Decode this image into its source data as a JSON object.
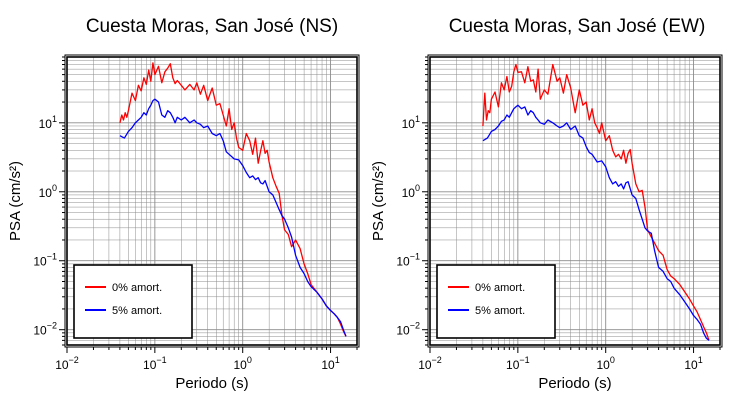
{
  "chart_data": [
    {
      "type": "line",
      "title": "Cuesta Moras, San José (NS)",
      "xlabel": "Periodo (s)",
      "ylabel": "PSA (cm/s²)",
      "x_scale": "log",
      "y_scale": "log",
      "xlim": [
        0.01,
        20
      ],
      "ylim": [
        0.006,
        90
      ],
      "x_ticks": [
        0.01,
        0.1,
        1,
        10
      ],
      "y_ticks": [
        0.01,
        0.1,
        1,
        10
      ],
      "grid": true,
      "legend_position": "bottom-left",
      "series": [
        {
          "name": "0% amort.",
          "color": "#ff0000",
          "x": [
            0.04,
            0.042,
            0.044,
            0.046,
            0.048,
            0.05,
            0.055,
            0.06,
            0.065,
            0.07,
            0.075,
            0.08,
            0.085,
            0.09,
            0.095,
            0.1,
            0.11,
            0.12,
            0.13,
            0.14,
            0.15,
            0.16,
            0.17,
            0.18,
            0.2,
            0.22,
            0.25,
            0.28,
            0.3,
            0.33,
            0.36,
            0.4,
            0.45,
            0.5,
            0.55,
            0.6,
            0.65,
            0.7,
            0.75,
            0.8,
            0.85,
            0.9,
            1.0,
            1.1,
            1.2,
            1.3,
            1.4,
            1.5,
            1.6,
            1.7,
            1.8,
            1.9,
            2.0,
            2.2,
            2.4,
            2.6,
            2.8,
            3.0,
            3.3,
            3.6,
            4.0,
            4.5,
            5.0,
            5.5,
            6.0,
            7.0,
            8.0,
            9.0,
            10.0,
            11.0,
            12.0,
            13.0,
            14.0,
            15.0
          ],
          "values": [
            10,
            13,
            11,
            14,
            12,
            15,
            27,
            21,
            35,
            29,
            45,
            36,
            58,
            40,
            74,
            50,
            66,
            38,
            55,
            62,
            72,
            45,
            37,
            41,
            35,
            30,
            36,
            30,
            38,
            26,
            35,
            21,
            32,
            18,
            19,
            13,
            9,
            16,
            8,
            10,
            6,
            4.4,
            4.0,
            7.0,
            5.5,
            3.5,
            6.0,
            2.6,
            3.9,
            5.5,
            3.6,
            4.0,
            2.7,
            1.6,
            1.2,
            0.95,
            0.45,
            0.28,
            0.24,
            0.16,
            0.2,
            0.15,
            0.09,
            0.065,
            0.045,
            0.035,
            0.028,
            0.022,
            0.019,
            0.017,
            0.015,
            0.012,
            0.0095,
            0.008
          ]
        },
        {
          "name": "5% amort.",
          "color": "#0000ff",
          "x": [
            0.04,
            0.045,
            0.05,
            0.055,
            0.06,
            0.065,
            0.07,
            0.075,
            0.08,
            0.085,
            0.09,
            0.095,
            0.1,
            0.11,
            0.12,
            0.13,
            0.14,
            0.15,
            0.16,
            0.17,
            0.18,
            0.2,
            0.22,
            0.25,
            0.28,
            0.3,
            0.33,
            0.36,
            0.4,
            0.45,
            0.5,
            0.55,
            0.6,
            0.65,
            0.7,
            0.8,
            0.9,
            1.0,
            1.1,
            1.2,
            1.3,
            1.4,
            1.5,
            1.6,
            1.7,
            1.8,
            2.0,
            2.2,
            2.4,
            2.6,
            2.8,
            3.0,
            3.3,
            3.6,
            4.0,
            4.5,
            5.0,
            5.5,
            6.0,
            7.0,
            8.0,
            9.0,
            10.0,
            11.0,
            12.0,
            13.0,
            14.0,
            15.0
          ],
          "values": [
            6.5,
            6.0,
            7.5,
            8.5,
            10,
            11,
            12,
            14,
            13,
            16,
            18,
            21,
            22,
            20,
            13,
            12,
            15,
            14,
            12,
            10,
            12,
            11,
            12,
            10,
            11,
            10,
            9.5,
            8.5,
            9.0,
            7.0,
            6.5,
            7.0,
            5.5,
            3.8,
            3.5,
            3.0,
            2.9,
            2.4,
            1.9,
            1.6,
            1.7,
            1.5,
            1.6,
            1.35,
            1.3,
            1.45,
            1.0,
            0.9,
            0.7,
            0.55,
            0.45,
            0.4,
            0.3,
            0.22,
            0.12,
            0.08,
            0.065,
            0.05,
            0.042,
            0.035,
            0.028,
            0.022,
            0.019,
            0.017,
            0.015,
            0.013,
            0.01,
            0.008
          ]
        }
      ]
    },
    {
      "type": "line",
      "title": "Cuesta Moras, San José (EW)",
      "xlabel": "Periodo (s)",
      "ylabel": "PSA (cm/s²)",
      "x_scale": "log",
      "y_scale": "log",
      "xlim": [
        0.01,
        20
      ],
      "ylim": [
        0.006,
        90
      ],
      "x_ticks": [
        0.01,
        0.1,
        1,
        10
      ],
      "y_ticks": [
        0.01,
        0.1,
        1,
        10
      ],
      "grid": true,
      "legend_position": "bottom-left",
      "series": [
        {
          "name": "0% amort.",
          "color": "#ff0000",
          "x": [
            0.04,
            0.042,
            0.044,
            0.046,
            0.048,
            0.05,
            0.055,
            0.06,
            0.065,
            0.07,
            0.075,
            0.08,
            0.085,
            0.09,
            0.095,
            0.1,
            0.11,
            0.12,
            0.13,
            0.14,
            0.15,
            0.16,
            0.17,
            0.18,
            0.2,
            0.22,
            0.25,
            0.28,
            0.3,
            0.33,
            0.36,
            0.4,
            0.45,
            0.5,
            0.55,
            0.6,
            0.65,
            0.7,
            0.75,
            0.8,
            0.85,
            0.9,
            1.0,
            1.1,
            1.2,
            1.3,
            1.4,
            1.5,
            1.6,
            1.7,
            1.8,
            1.9,
            2.0,
            2.2,
            2.4,
            2.6,
            2.8,
            3.0,
            3.3,
            3.6,
            4.0,
            4.5,
            5.0,
            5.5,
            6.0,
            7.0,
            8.0,
            9.0,
            10.0,
            11.0,
            12.0,
            13.0,
            14.0,
            15.0
          ],
          "values": [
            9,
            27,
            11,
            15,
            14,
            22,
            28,
            17,
            38,
            30,
            47,
            28,
            34,
            55,
            70,
            54,
            55,
            38,
            65,
            40,
            42,
            28,
            60,
            22,
            30,
            26,
            70,
            40,
            45,
            27,
            50,
            32,
            14,
            30,
            18,
            20,
            11,
            16,
            10,
            8.5,
            7.0,
            10,
            5.5,
            6.5,
            4.0,
            3.2,
            3.5,
            3.0,
            4.0,
            2.6,
            3.6,
            4.1,
            2.6,
            1.3,
            1.0,
            1.05,
            0.6,
            0.28,
            0.22,
            0.18,
            0.14,
            0.12,
            0.075,
            0.06,
            0.055,
            0.045,
            0.035,
            0.028,
            0.022,
            0.018,
            0.014,
            0.011,
            0.009,
            0.007
          ]
        },
        {
          "name": "5% amort.",
          "color": "#0000ff",
          "x": [
            0.04,
            0.045,
            0.05,
            0.055,
            0.06,
            0.065,
            0.07,
            0.075,
            0.08,
            0.085,
            0.09,
            0.095,
            0.1,
            0.11,
            0.12,
            0.13,
            0.14,
            0.15,
            0.16,
            0.17,
            0.18,
            0.2,
            0.22,
            0.25,
            0.28,
            0.3,
            0.33,
            0.36,
            0.4,
            0.45,
            0.5,
            0.55,
            0.6,
            0.65,
            0.7,
            0.8,
            0.9,
            1.0,
            1.1,
            1.2,
            1.3,
            1.4,
            1.5,
            1.6,
            1.7,
            1.8,
            2.0,
            2.2,
            2.4,
            2.6,
            2.8,
            3.0,
            3.3,
            3.6,
            4.0,
            4.5,
            5.0,
            5.5,
            6.0,
            7.0,
            8.0,
            9.0,
            10.0,
            11.0,
            12.0,
            13.0,
            14.0,
            15.0
          ],
          "values": [
            5.5,
            6.0,
            7.5,
            8.0,
            9.0,
            10.5,
            11,
            13,
            12,
            14,
            16,
            17,
            18,
            16,
            17,
            13,
            15,
            14,
            12,
            11,
            10,
            9.5,
            11,
            10,
            9.0,
            8.5,
            9.0,
            10,
            8.0,
            9.0,
            6.5,
            6.0,
            4.5,
            3.7,
            3.5,
            2.7,
            2.8,
            2.3,
            1.6,
            1.3,
            1.4,
            1.2,
            1.3,
            1.1,
            1.35,
            1.4,
            0.9,
            0.8,
            0.55,
            0.4,
            0.3,
            0.27,
            0.25,
            0.14,
            0.08,
            0.07,
            0.055,
            0.05,
            0.04,
            0.032,
            0.025,
            0.02,
            0.016,
            0.014,
            0.012,
            0.009,
            0.0075,
            0.007
          ]
        }
      ]
    }
  ]
}
